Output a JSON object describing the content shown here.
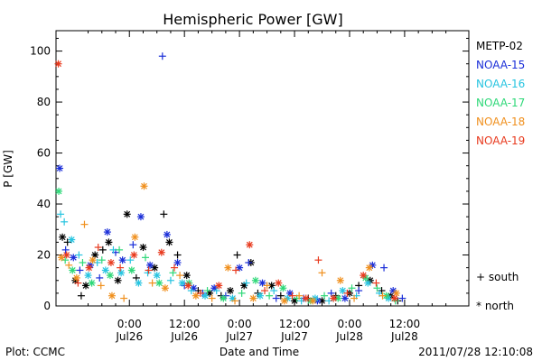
{
  "chart_data": {
    "type": "scatter",
    "title": "Hemispheric Power [GW]",
    "xlabel": "Date and Time",
    "ylabel": "P [GW]",
    "xlim": [
      -16,
      74
    ],
    "ylim": [
      0,
      108
    ],
    "x_unit": "hours from 2011-07-26 00:00 UT",
    "x_ticks": [
      {
        "x": 0,
        "top": "0:00",
        "bottom": "Jul26"
      },
      {
        "x": 12,
        "top": "12:00",
        "bottom": "Jul26"
      },
      {
        "x": 24,
        "top": "0:00",
        "bottom": "Jul27"
      },
      {
        "x": 36,
        "top": "12:00",
        "bottom": "Jul27"
      },
      {
        "x": 48,
        "top": "0:00",
        "bottom": "Jul28"
      },
      {
        "x": 60,
        "top": "12:00",
        "bottom": "Jul28"
      }
    ],
    "y_ticks": [
      0,
      20,
      40,
      60,
      80,
      100
    ],
    "grid": false,
    "legend_position": "right",
    "symbol_legend": {
      "south": "+ south",
      "north": "* north"
    },
    "series": [
      {
        "name": "METP-02",
        "color": "#000000",
        "points": [
          {
            "x": -14.6,
            "y": 27,
            "h": "n"
          },
          {
            "x": -13.5,
            "y": 25,
            "h": "s"
          },
          {
            "x": -11.8,
            "y": 10,
            "h": "n"
          },
          {
            "x": -10.5,
            "y": 4,
            "h": "s"
          },
          {
            "x": -9.5,
            "y": 8,
            "h": "n"
          },
          {
            "x": -7.5,
            "y": 20,
            "h": "n"
          },
          {
            "x": -5.8,
            "y": 22,
            "h": "s"
          },
          {
            "x": -4.5,
            "y": 25,
            "h": "n"
          },
          {
            "x": -2.5,
            "y": 10,
            "h": "n"
          },
          {
            "x": -0.5,
            "y": 36,
            "h": "n"
          },
          {
            "x": 1.5,
            "y": 11,
            "h": "s"
          },
          {
            "x": 3,
            "y": 23,
            "h": "n"
          },
          {
            "x": 5.5,
            "y": 15,
            "h": "n"
          },
          {
            "x": 7.5,
            "y": 36,
            "h": "s"
          },
          {
            "x": 8.7,
            "y": 25,
            "h": "n"
          },
          {
            "x": 10.5,
            "y": 20,
            "h": "s"
          },
          {
            "x": 12.5,
            "y": 12,
            "h": "n"
          },
          {
            "x": 15,
            "y": 6,
            "h": "s"
          },
          {
            "x": 17.5,
            "y": 5,
            "h": "n"
          },
          {
            "x": 20,
            "y": 4,
            "h": "s"
          },
          {
            "x": 22,
            "y": 6,
            "h": "n"
          },
          {
            "x": 23.5,
            "y": 20,
            "h": "s"
          },
          {
            "x": 25,
            "y": 8,
            "h": "n"
          },
          {
            "x": 26.5,
            "y": 17,
            "h": "n"
          },
          {
            "x": 28,
            "y": 5,
            "h": "s"
          },
          {
            "x": 31,
            "y": 8,
            "h": "n"
          },
          {
            "x": 33,
            "y": 4,
            "h": "s"
          },
          {
            "x": 36,
            "y": 2,
            "h": "n"
          },
          {
            "x": 39,
            "y": 3,
            "h": "s"
          },
          {
            "x": 42,
            "y": 2,
            "h": "n"
          },
          {
            "x": 45,
            "y": 4,
            "h": "s"
          },
          {
            "x": 48,
            "y": 5,
            "h": "n"
          },
          {
            "x": 50,
            "y": 8,
            "h": "s"
          },
          {
            "x": 52.5,
            "y": 10,
            "h": "n"
          },
          {
            "x": 55,
            "y": 6,
            "h": "s"
          },
          {
            "x": 57,
            "y": 4,
            "h": "n"
          },
          {
            "x": 58.5,
            "y": 2,
            "h": "s"
          }
        ]
      },
      {
        "name": "NOAA-15",
        "color": "#1a2ed8",
        "points": [
          {
            "x": -15.2,
            "y": 54,
            "h": "n"
          },
          {
            "x": -13.9,
            "y": 22,
            "h": "s"
          },
          {
            "x": -12.2,
            "y": 19,
            "h": "n"
          },
          {
            "x": -10.8,
            "y": 14,
            "h": "s"
          },
          {
            "x": -8.5,
            "y": 16,
            "h": "n"
          },
          {
            "x": -6.5,
            "y": 11,
            "h": "s"
          },
          {
            "x": -4.8,
            "y": 29,
            "h": "n"
          },
          {
            "x": -3,
            "y": 21,
            "h": "s"
          },
          {
            "x": -1.5,
            "y": 18,
            "h": "n"
          },
          {
            "x": 0.8,
            "y": 24,
            "h": "s"
          },
          {
            "x": 2.5,
            "y": 35,
            "h": "n"
          },
          {
            "x": 4.5,
            "y": 16,
            "h": "n"
          },
          {
            "x": 7.2,
            "y": 98,
            "h": "s"
          },
          {
            "x": 8.2,
            "y": 28,
            "h": "n"
          },
          {
            "x": 10.5,
            "y": 17,
            "h": "n"
          },
          {
            "x": 12,
            "y": 8,
            "h": "s"
          },
          {
            "x": 14,
            "y": 7,
            "h": "n"
          },
          {
            "x": 16,
            "y": 5,
            "h": "s"
          },
          {
            "x": 18.5,
            "y": 7,
            "h": "n"
          },
          {
            "x": 21,
            "y": 4,
            "h": "s"
          },
          {
            "x": 24,
            "y": 15,
            "h": "n"
          },
          {
            "x": 26,
            "y": 17,
            "h": "s"
          },
          {
            "x": 29,
            "y": 9,
            "h": "n"
          },
          {
            "x": 32,
            "y": 3,
            "h": "s"
          },
          {
            "x": 35,
            "y": 5,
            "h": "n"
          },
          {
            "x": 38,
            "y": 3,
            "h": "s"
          },
          {
            "x": 41,
            "y": 2,
            "h": "n"
          },
          {
            "x": 44,
            "y": 5,
            "h": "s"
          },
          {
            "x": 47,
            "y": 3,
            "h": "n"
          },
          {
            "x": 50,
            "y": 6,
            "h": "s"
          },
          {
            "x": 53,
            "y": 16,
            "h": "n"
          },
          {
            "x": 55.5,
            "y": 15,
            "h": "s"
          },
          {
            "x": 57.5,
            "y": 6,
            "h": "n"
          },
          {
            "x": 59.5,
            "y": 3,
            "h": "s"
          }
        ]
      },
      {
        "name": "NOAA-16",
        "color": "#27c4e0",
        "points": [
          {
            "x": -15,
            "y": 36,
            "h": "s"
          },
          {
            "x": -14.2,
            "y": 33,
            "h": "s"
          },
          {
            "x": -12.6,
            "y": 26,
            "h": "n"
          },
          {
            "x": -11,
            "y": 20,
            "h": "s"
          },
          {
            "x": -9,
            "y": 12,
            "h": "n"
          },
          {
            "x": -7,
            "y": 17,
            "h": "s"
          },
          {
            "x": -5.2,
            "y": 14,
            "h": "n"
          },
          {
            "x": -3.5,
            "y": 22,
            "h": "s"
          },
          {
            "x": -1.8,
            "y": 13,
            "h": "n"
          },
          {
            "x": 0.2,
            "y": 18,
            "h": "s"
          },
          {
            "x": 2,
            "y": 9,
            "h": "n"
          },
          {
            "x": 4,
            "y": 13,
            "h": "s"
          },
          {
            "x": 6,
            "y": 12,
            "h": "n"
          },
          {
            "x": 9,
            "y": 10,
            "h": "s"
          },
          {
            "x": 11.5,
            "y": 9,
            "h": "n"
          },
          {
            "x": 13.5,
            "y": 6,
            "h": "s"
          },
          {
            "x": 16.5,
            "y": 4,
            "h": "n"
          },
          {
            "x": 19,
            "y": 6,
            "h": "s"
          },
          {
            "x": 22.5,
            "y": 3,
            "h": "n"
          },
          {
            "x": 25.5,
            "y": 9,
            "h": "s"
          },
          {
            "x": 28.5,
            "y": 4,
            "h": "n"
          },
          {
            "x": 31.5,
            "y": 6,
            "h": "s"
          },
          {
            "x": 34.5,
            "y": 3,
            "h": "n"
          },
          {
            "x": 37.5,
            "y": 2,
            "h": "s"
          },
          {
            "x": 40.5,
            "y": 3,
            "h": "n"
          },
          {
            "x": 43.5,
            "y": 2,
            "h": "s"
          },
          {
            "x": 46.5,
            "y": 6,
            "h": "n"
          },
          {
            "x": 49.5,
            "y": 4,
            "h": "s"
          },
          {
            "x": 52,
            "y": 9,
            "h": "n"
          },
          {
            "x": 54.5,
            "y": 5,
            "h": "s"
          },
          {
            "x": 56.5,
            "y": 3,
            "h": "n"
          }
        ]
      },
      {
        "name": "NOAA-17",
        "color": "#2ed878",
        "points": [
          {
            "x": -15.4,
            "y": 45,
            "h": "n"
          },
          {
            "x": -14,
            "y": 18,
            "h": "s"
          },
          {
            "x": -12.4,
            "y": 14,
            "h": "n"
          },
          {
            "x": -10.2,
            "y": 17,
            "h": "s"
          },
          {
            "x": -8.2,
            "y": 9,
            "h": "n"
          },
          {
            "x": -6,
            "y": 18,
            "h": "s"
          },
          {
            "x": -4.2,
            "y": 12,
            "h": "n"
          },
          {
            "x": -2.2,
            "y": 22,
            "h": "s"
          },
          {
            "x": 0.5,
            "y": 14,
            "h": "n"
          },
          {
            "x": 3.5,
            "y": 19,
            "h": "s"
          },
          {
            "x": 6.5,
            "y": 9,
            "h": "n"
          },
          {
            "x": 9.5,
            "y": 13,
            "h": "s"
          },
          {
            "x": 13,
            "y": 9,
            "h": "n"
          },
          {
            "x": 17,
            "y": 6,
            "h": "s"
          },
          {
            "x": 20.5,
            "y": 3,
            "h": "n"
          },
          {
            "x": 24.5,
            "y": 5,
            "h": "s"
          },
          {
            "x": 27.5,
            "y": 10,
            "h": "n"
          },
          {
            "x": 30.5,
            "y": 4,
            "h": "s"
          },
          {
            "x": 33.5,
            "y": 7,
            "h": "n"
          },
          {
            "x": 36.5,
            "y": 3,
            "h": "s"
          },
          {
            "x": 39.5,
            "y": 2,
            "h": "n"
          },
          {
            "x": 42.5,
            "y": 4,
            "h": "s"
          },
          {
            "x": 45.5,
            "y": 3,
            "h": "n"
          },
          {
            "x": 48.5,
            "y": 7,
            "h": "s"
          },
          {
            "x": 51.5,
            "y": 11,
            "h": "n"
          },
          {
            "x": 54,
            "y": 7,
            "h": "s"
          },
          {
            "x": 56,
            "y": 4,
            "h": "n"
          },
          {
            "x": 58,
            "y": 2,
            "h": "s"
          }
        ]
      },
      {
        "name": "NOAA-18",
        "color": "#f0901e",
        "points": [
          {
            "x": -14.8,
            "y": 19,
            "h": "n"
          },
          {
            "x": -13.2,
            "y": 16,
            "h": "s"
          },
          {
            "x": -11.5,
            "y": 11,
            "h": "n"
          },
          {
            "x": -9.8,
            "y": 32,
            "h": "s"
          },
          {
            "x": -8,
            "y": 18,
            "h": "n"
          },
          {
            "x": -6.2,
            "y": 8,
            "h": "s"
          },
          {
            "x": -3.8,
            "y": 4,
            "h": "n"
          },
          {
            "x": -1.2,
            "y": 3,
            "h": "s"
          },
          {
            "x": 1.2,
            "y": 27,
            "h": "n"
          },
          {
            "x": 3.2,
            "y": 47,
            "h": "n"
          },
          {
            "x": 5,
            "y": 9,
            "h": "s"
          },
          {
            "x": 7.8,
            "y": 7,
            "h": "n"
          },
          {
            "x": 11,
            "y": 12,
            "h": "s"
          },
          {
            "x": 14.5,
            "y": 4,
            "h": "n"
          },
          {
            "x": 18,
            "y": 3,
            "h": "s"
          },
          {
            "x": 21.5,
            "y": 15,
            "h": "n"
          },
          {
            "x": 23,
            "y": 2,
            "h": "s"
          },
          {
            "x": 27,
            "y": 3,
            "h": "n"
          },
          {
            "x": 30,
            "y": 8,
            "h": "s"
          },
          {
            "x": 33.8,
            "y": 2,
            "h": "n"
          },
          {
            "x": 37,
            "y": 4,
            "h": "s"
          },
          {
            "x": 40,
            "y": 2,
            "h": "n"
          },
          {
            "x": 42,
            "y": 13,
            "h": "s"
          },
          {
            "x": 46,
            "y": 10,
            "h": "n"
          },
          {
            "x": 49,
            "y": 3,
            "h": "s"
          },
          {
            "x": 52.3,
            "y": 15,
            "h": "n"
          },
          {
            "x": 55.2,
            "y": 4,
            "h": "s"
          },
          {
            "x": 58.2,
            "y": 5,
            "h": "n"
          }
        ]
      },
      {
        "name": "NOAA-19",
        "color": "#e83a1e",
        "points": [
          {
            "x": -15.5,
            "y": 95,
            "h": "n"
          },
          {
            "x": -13.7,
            "y": 20,
            "h": "n"
          },
          {
            "x": -11.2,
            "y": 9,
            "h": "s"
          },
          {
            "x": -8.8,
            "y": 15,
            "h": "n"
          },
          {
            "x": -6.8,
            "y": 23,
            "h": "s"
          },
          {
            "x": -4,
            "y": 17,
            "h": "n"
          },
          {
            "x": -2,
            "y": 15,
            "h": "s"
          },
          {
            "x": 1,
            "y": 20,
            "h": "n"
          },
          {
            "x": 4.2,
            "y": 14,
            "h": "s"
          },
          {
            "x": 7,
            "y": 21,
            "h": "n"
          },
          {
            "x": 9.8,
            "y": 15,
            "h": "s"
          },
          {
            "x": 12.8,
            "y": 8,
            "h": "n"
          },
          {
            "x": 15.5,
            "y": 5,
            "h": "s"
          },
          {
            "x": 19.5,
            "y": 8,
            "h": "n"
          },
          {
            "x": 23.2,
            "y": 14,
            "h": "s"
          },
          {
            "x": 26.2,
            "y": 24,
            "h": "n"
          },
          {
            "x": 29.5,
            "y": 6,
            "h": "s"
          },
          {
            "x": 32.5,
            "y": 9,
            "h": "n"
          },
          {
            "x": 35.5,
            "y": 4,
            "h": "s"
          },
          {
            "x": 38.5,
            "y": 3,
            "h": "n"
          },
          {
            "x": 41.2,
            "y": 18,
            "h": "s"
          },
          {
            "x": 44.5,
            "y": 3,
            "h": "n"
          },
          {
            "x": 47.5,
            "y": 5,
            "h": "s"
          },
          {
            "x": 51,
            "y": 12,
            "h": "n"
          },
          {
            "x": 53.8,
            "y": 9,
            "h": "s"
          },
          {
            "x": 57.8,
            "y": 3,
            "h": "n"
          }
        ]
      }
    ]
  },
  "footer": {
    "left": "Plot: CCMC",
    "timestamp": "2011/07/28 12:10:08"
  }
}
